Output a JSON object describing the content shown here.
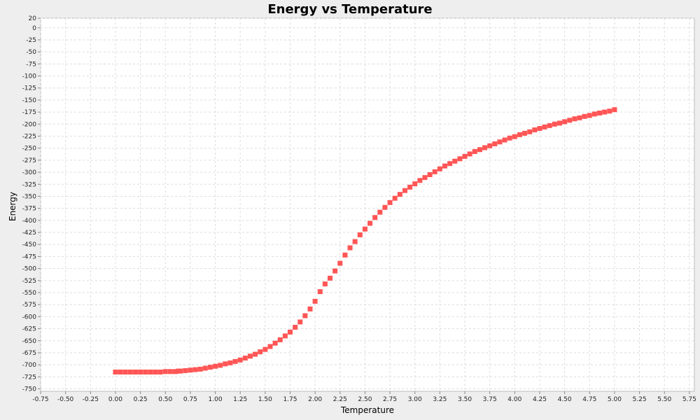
{
  "chart_data": {
    "type": "scatter",
    "title": "Energy vs Temperature",
    "xlabel": "Temperature",
    "ylabel": "Energy",
    "xlim": [
      -0.75,
      5.8
    ],
    "ylim": [
      -755,
      20
    ],
    "x_ticks": [
      "-0.75",
      "-0.50",
      "-0.25",
      "0.00",
      "0.25",
      "0.50",
      "0.75",
      "1.00",
      "1.25",
      "1.50",
      "1.75",
      "2.00",
      "2.25",
      "2.50",
      "2.75",
      "3.00",
      "3.25",
      "3.50",
      "3.75",
      "4.00",
      "4.25",
      "4.50",
      "4.75",
      "5.00",
      "5.25",
      "5.50",
      "5.75"
    ],
    "y_ticks": [
      "20",
      "0",
      "-25",
      "-50",
      "-75",
      "-100",
      "-125",
      "-150",
      "-175",
      "-200",
      "-225",
      "-250",
      "-275",
      "-300",
      "-325",
      "-350",
      "-375",
      "-400",
      "-425",
      "-450",
      "-475",
      "-500",
      "-525",
      "-550",
      "-575",
      "-600",
      "-625",
      "-650",
      "-675",
      "-700",
      "-725",
      "-750"
    ],
    "grid": true,
    "background": "#ffffff",
    "series": [
      {
        "color": "#ff5555",
        "marker": "square",
        "points": [
          [
            0.0,
            -715
          ],
          [
            0.05,
            -715
          ],
          [
            0.1,
            -715
          ],
          [
            0.15,
            -715
          ],
          [
            0.2,
            -715
          ],
          [
            0.25,
            -715
          ],
          [
            0.3,
            -715
          ],
          [
            0.35,
            -715
          ],
          [
            0.4,
            -715
          ],
          [
            0.45,
            -715
          ],
          [
            0.5,
            -714
          ],
          [
            0.55,
            -714
          ],
          [
            0.6,
            -714
          ],
          [
            0.63,
            -713
          ],
          [
            0.65,
            -713
          ],
          [
            0.7,
            -712
          ],
          [
            0.75,
            -711
          ],
          [
            0.8,
            -710
          ],
          [
            0.85,
            -709
          ],
          [
            0.9,
            -707
          ],
          [
            0.95,
            -705
          ],
          [
            1.0,
            -703
          ],
          [
            1.05,
            -701
          ],
          [
            1.1,
            -698
          ],
          [
            1.15,
            -696
          ],
          [
            1.2,
            -693
          ],
          [
            1.25,
            -690
          ],
          [
            1.3,
            -686
          ],
          [
            1.35,
            -682
          ],
          [
            1.4,
            -678
          ],
          [
            1.45,
            -673
          ],
          [
            1.5,
            -668
          ],
          [
            1.55,
            -662
          ],
          [
            1.6,
            -655
          ],
          [
            1.65,
            -648
          ],
          [
            1.7,
            -640
          ],
          [
            1.75,
            -632
          ],
          [
            1.8,
            -622
          ],
          [
            1.85,
            -611
          ],
          [
            1.9,
            -598
          ],
          [
            1.95,
            -584
          ],
          [
            2.0,
            -568
          ],
          [
            2.05,
            -548
          ],
          [
            2.1,
            -532
          ],
          [
            2.15,
            -520
          ],
          [
            2.2,
            -505
          ],
          [
            2.25,
            -489
          ],
          [
            2.3,
            -472
          ],
          [
            2.35,
            -457
          ],
          [
            2.4,
            -444
          ],
          [
            2.45,
            -430
          ],
          [
            2.5,
            -418
          ],
          [
            2.55,
            -406
          ],
          [
            2.6,
            -394
          ],
          [
            2.65,
            -383
          ],
          [
            2.7,
            -373
          ],
          [
            2.75,
            -363
          ],
          [
            2.8,
            -354
          ],
          [
            2.85,
            -346
          ],
          [
            2.9,
            -338
          ],
          [
            2.95,
            -331
          ],
          [
            3.0,
            -324
          ],
          [
            3.05,
            -317
          ],
          [
            3.1,
            -311
          ],
          [
            3.15,
            -305
          ],
          [
            3.2,
            -299
          ],
          [
            3.25,
            -293
          ],
          [
            3.3,
            -287
          ],
          [
            3.35,
            -282
          ],
          [
            3.4,
            -277
          ],
          [
            3.45,
            -272
          ],
          [
            3.5,
            -267
          ],
          [
            3.55,
            -262
          ],
          [
            3.6,
            -257
          ],
          [
            3.65,
            -253
          ],
          [
            3.7,
            -249
          ],
          [
            3.75,
            -245
          ],
          [
            3.8,
            -241
          ],
          [
            3.85,
            -237
          ],
          [
            3.9,
            -233
          ],
          [
            3.95,
            -229
          ],
          [
            4.0,
            -226
          ],
          [
            4.05,
            -222
          ],
          [
            4.1,
            -219
          ],
          [
            4.15,
            -216
          ],
          [
            4.2,
            -212
          ],
          [
            4.25,
            -209
          ],
          [
            4.3,
            -206
          ],
          [
            4.35,
            -203
          ],
          [
            4.4,
            -200
          ],
          [
            4.45,
            -198
          ],
          [
            4.5,
            -195
          ],
          [
            4.55,
            -192
          ],
          [
            4.6,
            -189
          ],
          [
            4.65,
            -187
          ],
          [
            4.7,
            -184
          ],
          [
            4.75,
            -182
          ],
          [
            4.8,
            -179
          ],
          [
            4.85,
            -177
          ],
          [
            4.9,
            -175
          ],
          [
            4.95,
            -173
          ],
          [
            5.0,
            -170
          ]
        ]
      }
    ]
  }
}
